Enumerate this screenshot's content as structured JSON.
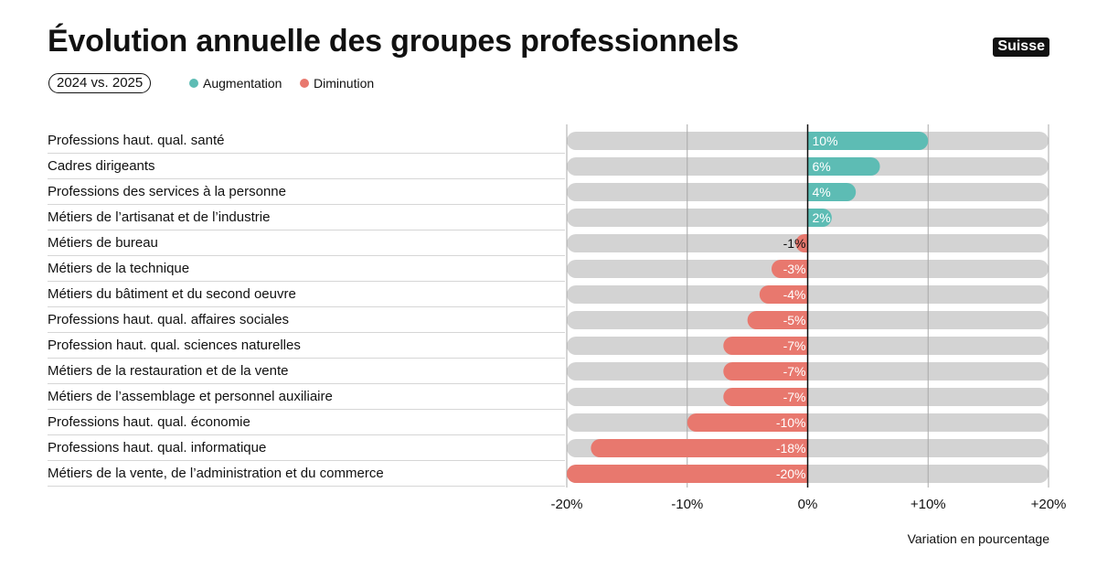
{
  "header": {
    "title": "Évolution annuelle des groupes professionnels",
    "badge": "Suisse",
    "period": "2024 vs. 2025"
  },
  "legend": {
    "increase": {
      "label": "Augmentation",
      "color": "#5dbcb4"
    },
    "decrease": {
      "label": "Diminution",
      "color": "#e8786e"
    }
  },
  "colors": {
    "track": "#d3d3d3",
    "gridline": "#aaaaaa",
    "zero_line": "#111111"
  },
  "footnote": "Variation en pourcentage",
  "chart_data": {
    "type": "bar",
    "orientation": "horizontal",
    "xlim": [
      -20,
      20
    ],
    "x_ticks": [
      -20,
      -10,
      0,
      10,
      20
    ],
    "x_tick_labels": [
      "-20%",
      "-10%",
      "0%",
      "+10%",
      "+20%"
    ],
    "grid": true,
    "categories": [
      "Professions haut. qual. santé",
      "Cadres dirigeants",
      "Professions des services à la personne",
      "Métiers de l’artisanat et de l’industrie",
      "Métiers de bureau",
      "Métiers de la technique",
      "Métiers du bâtiment et du second oeuvre",
      "Professions haut. qual. affaires sociales",
      "Profession haut. qual. sciences naturelles",
      "Métiers de la restauration et de la vente",
      "Métiers de l’assemblage et personnel auxiliaire",
      "Professions haut. qual. économie",
      "Professions haut. qual. informatique",
      "Métiers de la vente, de l’administration et du commerce"
    ],
    "values": [
      10,
      6,
      4,
      2,
      -1,
      -3,
      -4,
      -5,
      -7,
      -7,
      -7,
      -10,
      -18,
      -20
    ],
    "data_labels": [
      "10%",
      "6%",
      "4%",
      "2%",
      "-1%",
      "-3%",
      "-4%",
      "-5%",
      "-7%",
      "-7%",
      "-7%",
      "-10%",
      "-18%",
      "-20%"
    ]
  }
}
